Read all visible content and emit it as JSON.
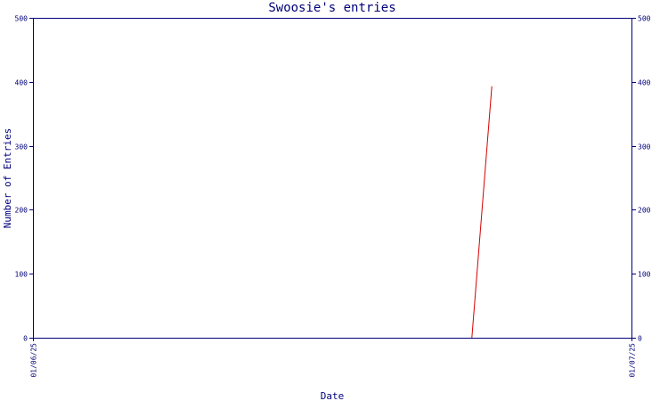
{
  "chart_data": {
    "type": "line",
    "title": "Swoosie's entries",
    "xlabel": "Date",
    "ylabel": "Number of Entries",
    "x_ticks": [
      "01/06/25",
      "01/07/25"
    ],
    "ylim": [
      0,
      500
    ],
    "y_ticks": [
      0,
      100,
      200,
      300,
      400,
      500
    ],
    "series": [
      {
        "color": "#d40000",
        "x": [
          "2025-06-23",
          "2025-06-24"
        ],
        "values": [
          0,
          393
        ]
      }
    ],
    "grid": false
  }
}
